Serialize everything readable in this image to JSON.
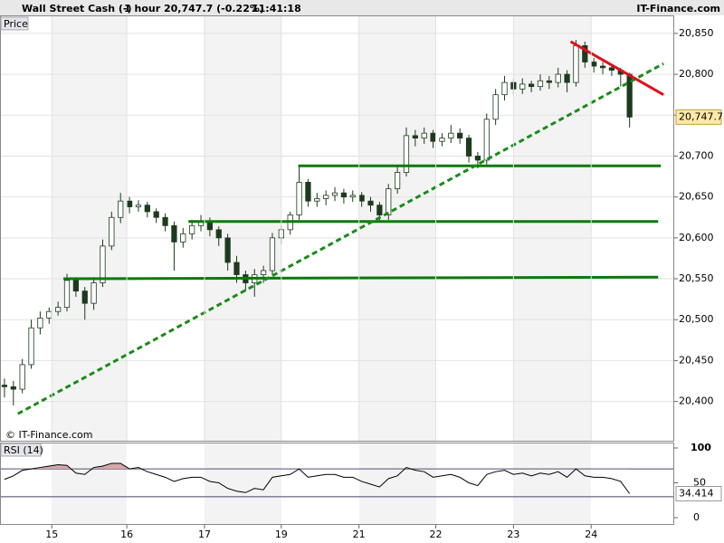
{
  "header": {
    "instrument": "Wall Street Cash (-)",
    "interval": "1 hour",
    "quote": "20,747.7 (-0.22%)",
    "time": "11:41:18",
    "site": "IT-Finance.com"
  },
  "chart_data": [
    {
      "type": "candlestick",
      "title": "Price",
      "watermark": "© IT-Finance.com",
      "up_color": "#ffffff",
      "down_color": "#1e3a1e",
      "wick_color": "#1e3a1e",
      "xlim": [
        -0.5,
        75
      ],
      "ylim": [
        20352,
        20872
      ],
      "yticks": [
        {
          "value": 20400,
          "label": "20,400"
        },
        {
          "value": 20450,
          "label": "20,450"
        },
        {
          "value": 20500,
          "label": "20,500"
        },
        {
          "value": 20550,
          "label": "20,550"
        },
        {
          "value": 20600,
          "label": "20,600"
        },
        {
          "value": 20650,
          "label": "20,650"
        },
        {
          "value": 20700,
          "label": "20,700"
        },
        {
          "value": 20750,
          "label": "20,750"
        },
        {
          "value": 20800,
          "label": "20,800"
        },
        {
          "value": 20850,
          "label": "20,850"
        }
      ],
      "grid": true,
      "last_label": "20,747.7",
      "candles": [
        [
          20420,
          20428,
          20405,
          20418
        ],
        [
          20418,
          20425,
          20395,
          20415
        ],
        [
          20415,
          20452,
          20410,
          20445
        ],
        [
          20445,
          20500,
          20440,
          20490
        ],
        [
          20490,
          20510,
          20482,
          20502
        ],
        [
          20502,
          20515,
          20495,
          20510
        ],
        [
          20510,
          20522,
          20505,
          20515
        ],
        [
          20515,
          20556,
          20510,
          20548
        ],
        [
          20548,
          20552,
          20528,
          20535
        ],
        [
          20535,
          20540,
          20500,
          20520
        ],
        [
          20520,
          20552,
          20512,
          20545
        ],
        [
          20545,
          20598,
          20540,
          20590
        ],
        [
          20590,
          20632,
          20585,
          20625
        ],
        [
          20625,
          20655,
          20618,
          20645
        ],
        [
          20645,
          20650,
          20630,
          20638
        ],
        [
          20638,
          20646,
          20632,
          20640
        ],
        [
          20640,
          20644,
          20625,
          20632
        ],
        [
          20632,
          20636,
          20618,
          20625
        ],
        [
          20625,
          20630,
          20608,
          20615
        ],
        [
          20615,
          20620,
          20560,
          20595
        ],
        [
          20595,
          20612,
          20588,
          20605
        ],
        [
          20605,
          20622,
          20598,
          20615
        ],
        [
          20615,
          20628,
          20608,
          20620
        ],
        [
          20620,
          20625,
          20602,
          20610
        ],
        [
          20610,
          20614,
          20590,
          20600
        ],
        [
          20600,
          20605,
          20560,
          20570
        ],
        [
          20570,
          20578,
          20545,
          20555
        ],
        [
          20555,
          20560,
          20535,
          20545
        ],
        [
          20545,
          20562,
          20528,
          20555
        ],
        [
          20555,
          20566,
          20545,
          20560
        ],
        [
          20560,
          20606,
          20555,
          20600
        ],
        [
          20600,
          20615,
          20592,
          20610
        ],
        [
          20610,
          20632,
          20604,
          20628
        ],
        [
          20628,
          20688,
          20622,
          20668
        ],
        [
          20668,
          20672,
          20638,
          20645
        ],
        [
          20645,
          20655,
          20638,
          20648
        ],
        [
          20648,
          20658,
          20640,
          20652
        ],
        [
          20652,
          20662,
          20645,
          20655
        ],
        [
          20655,
          20660,
          20642,
          20650
        ],
        [
          20650,
          20658,
          20644,
          20652
        ],
        [
          20652,
          20656,
          20638,
          20645
        ],
        [
          20645,
          20650,
          20632,
          20640
        ],
        [
          20640,
          20644,
          20620,
          20628
        ],
        [
          20628,
          20666,
          20622,
          20660
        ],
        [
          20660,
          20688,
          20654,
          20680
        ],
        [
          20680,
          20735,
          20675,
          20725
        ],
        [
          20725,
          20732,
          20712,
          20722
        ],
        [
          20722,
          20735,
          20715,
          20728
        ],
        [
          20728,
          20732,
          20710,
          20718
        ],
        [
          20718,
          20728,
          20712,
          20722
        ],
        [
          20722,
          20738,
          20716,
          20728
        ],
        [
          20728,
          20734,
          20715,
          20722
        ],
        [
          20722,
          20726,
          20692,
          20700
        ],
        [
          20700,
          20705,
          20685,
          20695
        ],
        [
          20695,
          20752,
          20690,
          20745
        ],
        [
          20745,
          20782,
          20738,
          20775
        ],
        [
          20775,
          20798,
          20768,
          20790
        ],
        [
          20790,
          20795,
          20775,
          20782
        ],
        [
          20782,
          20795,
          20776,
          20788
        ],
        [
          20788,
          20792,
          20778,
          20785
        ],
        [
          20785,
          20800,
          20780,
          20792
        ],
        [
          20792,
          20798,
          20782,
          20790
        ],
        [
          20790,
          20808,
          20784,
          20800
        ],
        [
          20800,
          20805,
          20778,
          20790
        ],
        [
          20790,
          20842,
          20785,
          20835
        ],
        [
          20835,
          20840,
          20808,
          20815
        ],
        [
          20815,
          20820,
          20802,
          20810
        ],
        [
          20810,
          20815,
          20800,
          20808
        ],
        [
          20808,
          20812,
          20798,
          20805
        ],
        [
          20805,
          20808,
          20785,
          20800
        ],
        [
          20800,
          20802,
          20735,
          20747.7
        ]
      ],
      "trendlines": [
        {
          "x": [
            6.6,
            73.2
          ],
          "y": [
            20550,
            20552
          ],
          "color": "#0a7a0a",
          "dashed": false
        },
        {
          "x": [
            20.6,
            73.2
          ],
          "y": [
            20620,
            20620
          ],
          "color": "#0a7a0a",
          "dashed": false
        },
        {
          "x": [
            32.9,
            73.5
          ],
          "y": [
            20688,
            20688
          ],
          "color": "#0a7a0a",
          "dashed": false
        },
        {
          "x": [
            1.5,
            73.8
          ],
          "y": [
            20385,
            20813
          ],
          "color": "#1a8a1a",
          "dashed": true
        },
        {
          "x": [
            63.4,
            73.8
          ],
          "y": [
            20840,
            20775
          ],
          "color": "#e0101a",
          "dashed": false
        }
      ]
    },
    {
      "type": "line",
      "title": "RSI (14)",
      "color": "#000000",
      "fill_color": "#d4a8a8",
      "xlim": [
        -0.5,
        75
      ],
      "ylim": [
        -10.4,
        107.8
      ],
      "yticks": [
        0,
        50,
        100
      ],
      "levels": [
        30,
        70
      ],
      "xticks": [
        {
          "value": 5.3,
          "label": "15"
        },
        {
          "value": 13.7,
          "label": "16"
        },
        {
          "value": 22.4,
          "label": "17"
        },
        {
          "value": 31.0,
          "label": "19"
        },
        {
          "value": 39.7,
          "label": "21"
        },
        {
          "value": 48.3,
          "label": "22"
        },
        {
          "value": 57.0,
          "label": "23"
        },
        {
          "value": 65.7,
          "label": "24"
        }
      ],
      "values": [
        55,
        60,
        68,
        70,
        72,
        74,
        76,
        75,
        64,
        62,
        72,
        74,
        78,
        78,
        70,
        72,
        66,
        62,
        58,
        52,
        56,
        58,
        58,
        52,
        50,
        42,
        38,
        36,
        42,
        40,
        58,
        60,
        62,
        70,
        58,
        60,
        62,
        62,
        58,
        58,
        52,
        48,
        44,
        56,
        60,
        72,
        68,
        66,
        58,
        60,
        62,
        58,
        50,
        46,
        62,
        66,
        68,
        62,
        64,
        60,
        64,
        62,
        66,
        58,
        70,
        60,
        58,
        58,
        56,
        52,
        34.414
      ]
    }
  ]
}
